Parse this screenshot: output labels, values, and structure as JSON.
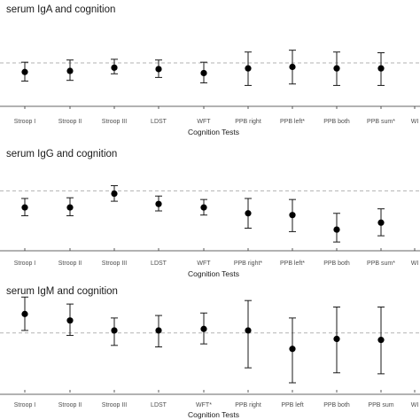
{
  "chart_data": [
    {
      "type": "scatter",
      "title": "serum IgA and cognition",
      "xlabel": "Cognition Tests",
      "ylabel": "",
      "categories": [
        "Stroop I",
        "Stroop II",
        "Stroop III",
        "LDST",
        "WFT",
        "PPB right",
        "PPB left*",
        "PPB both",
        "PPB sum*",
        "WI"
      ],
      "reference_line": 0,
      "ylim": [
        -1,
        1
      ],
      "series": [
        {
          "estimates": [
            -0.25,
            -0.22,
            -0.13,
            -0.17,
            -0.28,
            -0.15,
            -0.11,
            -0.15,
            -0.15,
            null
          ],
          "lower": [
            -0.5,
            -0.48,
            -0.3,
            -0.4,
            -0.55,
            -0.62,
            -0.58,
            -0.62,
            -0.62,
            null
          ],
          "upper": [
            0.02,
            0.08,
            0.1,
            0.08,
            0.02,
            0.3,
            0.35,
            0.3,
            0.28,
            null
          ]
        }
      ]
    },
    {
      "type": "scatter",
      "title": "serum IgG and cognition",
      "xlabel": "Cognition Tests",
      "ylabel": "",
      "categories": [
        "Stroop I",
        "Stroop II",
        "Stroop III",
        "LDST",
        "WFT",
        "PPB right*",
        "PPB left*",
        "PPB both",
        "PPB sum*",
        "WI"
      ],
      "reference_line": 0,
      "ylim": [
        -1.4,
        0.6
      ],
      "series": [
        {
          "estimates": [
            -0.48,
            -0.48,
            -0.08,
            -0.38,
            -0.48,
            -0.65,
            -0.7,
            -1.12,
            -0.92,
            null
          ],
          "lower": [
            -0.72,
            -0.72,
            -0.3,
            -0.58,
            -0.7,
            -1.08,
            -1.18,
            -1.48,
            -1.3,
            null
          ],
          "upper": [
            -0.22,
            -0.2,
            0.15,
            -0.15,
            -0.25,
            -0.22,
            -0.25,
            -0.65,
            -0.52,
            null
          ]
        }
      ]
    },
    {
      "type": "scatter",
      "title": "serum IgM and cognition",
      "xlabel": "Cognition Tests",
      "ylabel": "",
      "categories": [
        "Stroop I",
        "Stroop II",
        "Stroop III",
        "LDST",
        "WFT*",
        "PPB right",
        "PPB left",
        "PPB both",
        "PPB sum",
        "WI"
      ],
      "reference_line": 0,
      "ylim": [
        -1,
        0.6
      ],
      "series": [
        {
          "estimates": [
            0.38,
            0.25,
            0.05,
            0.05,
            0.08,
            0.05,
            -0.32,
            -0.12,
            -0.14,
            null
          ],
          "lower": [
            0.05,
            -0.05,
            -0.25,
            -0.28,
            -0.22,
            -0.7,
            -1.0,
            -0.8,
            -0.82,
            null
          ],
          "upper": [
            0.72,
            0.58,
            0.3,
            0.35,
            0.4,
            0.65,
            0.3,
            0.52,
            0.52,
            null
          ]
        }
      ]
    }
  ]
}
